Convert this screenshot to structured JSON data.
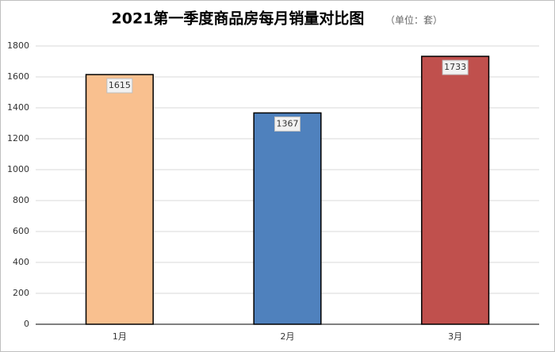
{
  "chart_data": {
    "type": "bar",
    "title": "2021第一季度商品房每月销量对比图",
    "subtitle": "（单位：套）",
    "categories": [
      "1月",
      "2月",
      "3月"
    ],
    "values": [
      1615,
      1367,
      1733
    ],
    "colors": [
      "#f9c08f",
      "#4f81bd",
      "#c0504d"
    ],
    "ylim": [
      0,
      1800
    ],
    "yticks": [
      0,
      200,
      400,
      600,
      800,
      1000,
      1200,
      1400,
      1600,
      1800
    ],
    "grid": true
  }
}
